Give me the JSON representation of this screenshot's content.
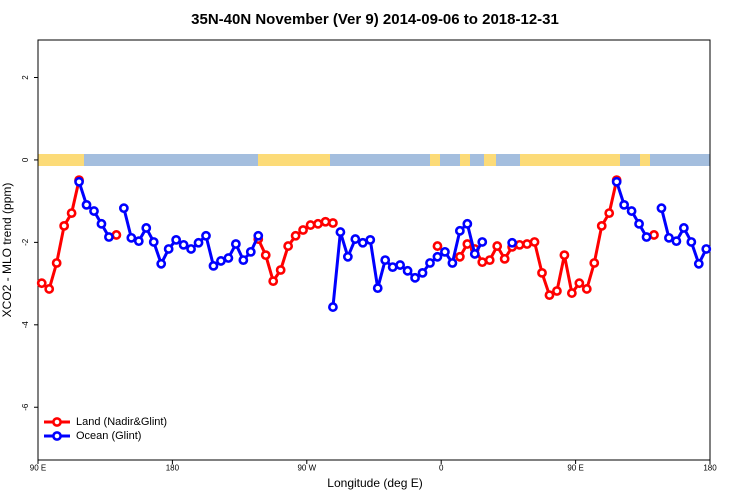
{
  "chart_data": {
    "type": "line",
    "title": "35N-40N November (Ver 9)   2014-09-06 to 2018-12-31",
    "xlabel": "Longitude (deg E)",
    "ylabel": "XCO2 - MLO trend (ppm)",
    "x": [
      92.5,
      97.5,
      102.5,
      107.5,
      112.5,
      117.5,
      122.5,
      127.5,
      132.5,
      137.5,
      142.5,
      147.5,
      152.5,
      157.5,
      162.5,
      167.5,
      172.5,
      177.5,
      182.5,
      187.5,
      192.5,
      197.5,
      202.5,
      207.5,
      212.5,
      217.5,
      222.5,
      227.5,
      232.5,
      237.5,
      242.5,
      247.5,
      252.5,
      257.5,
      262.5,
      267.5,
      272.5,
      277.5,
      282.5,
      287.5,
      292.5,
      297.5,
      302.5,
      307.5,
      312.5,
      317.5,
      322.5,
      327.5,
      332.5,
      337.5,
      342.5,
      347.5,
      352.5,
      357.5,
      362.5,
      367.5,
      372.5,
      377.5,
      382.5,
      387.5,
      392.5,
      397.5,
      402.5,
      407.5,
      412.5,
      417.5,
      422.5,
      427.5,
      432.5,
      437.5,
      442.5,
      447.5,
      452.5,
      457.5,
      462.5,
      467.5,
      472.5,
      477.5,
      482.5,
      487.5,
      492.5,
      497.5,
      502.5,
      507.5,
      512.5,
      517.5,
      522.5,
      527.5,
      532.5,
      537.5
    ],
    "series": [
      {
        "name": "Land (Nadir&Glint)",
        "color": "#ff0000",
        "values": [
          -2.99,
          -3.13,
          -2.5,
          -1.6,
          -1.29,
          -0.49,
          null,
          null,
          null,
          null,
          -1.82,
          null,
          null,
          null,
          null,
          null,
          null,
          null,
          null,
          null,
          null,
          null,
          null,
          null,
          null,
          null,
          null,
          null,
          null,
          -1.92,
          -2.31,
          -2.94,
          -2.67,
          -2.09,
          -1.84,
          -1.7,
          -1.58,
          -1.55,
          -1.5,
          -1.53,
          null,
          null,
          null,
          null,
          null,
          null,
          null,
          null,
          null,
          null,
          null,
          null,
          null,
          -2.09,
          null,
          null,
          -2.35,
          -2.04,
          -2.16,
          -2.48,
          -2.43,
          -2.09,
          -2.4,
          -2.11,
          -2.06,
          -2.04,
          -1.99,
          -2.74,
          -3.28,
          -3.18,
          -2.31,
          -3.23,
          -2.99,
          -3.13,
          -2.5,
          -1.6,
          -1.29,
          -0.49,
          null,
          null,
          null,
          null,
          -1.82,
          null,
          null,
          null,
          null,
          null,
          null,
          null
        ]
      },
      {
        "name": "Ocean (Glint)",
        "color": "#0000ff",
        "values": [
          null,
          null,
          null,
          null,
          null,
          -0.53,
          -1.09,
          -1.24,
          -1.55,
          -1.87,
          null,
          -1.17,
          -1.89,
          -1.97,
          -1.65,
          -1.99,
          -2.52,
          -2.16,
          -1.94,
          -2.06,
          -2.16,
          -2.01,
          -1.84,
          -2.57,
          -2.45,
          -2.38,
          -2.04,
          -2.43,
          -2.23,
          -1.84,
          null,
          null,
          null,
          null,
          null,
          null,
          null,
          null,
          null,
          -3.57,
          -1.75,
          -2.35,
          -1.92,
          -2.01,
          -1.94,
          -3.11,
          -2.43,
          -2.6,
          -2.55,
          -2.69,
          -2.86,
          -2.74,
          -2.5,
          -2.35,
          -2.23,
          -2.5,
          -1.72,
          -1.55,
          -2.28,
          -1.99,
          null,
          null,
          null,
          -2.01,
          null,
          null,
          null,
          null,
          null,
          null,
          null,
          null,
          null,
          null,
          null,
          null,
          null,
          -0.53,
          -1.09,
          -1.24,
          -1.55,
          -1.87,
          null,
          -1.17,
          -1.89,
          -1.97,
          -1.65,
          -1.99,
          -2.52,
          -2.16
        ]
      }
    ],
    "xlim": [
      90,
      540
    ],
    "xticks": [
      {
        "value": 90,
        "label": "90 E"
      },
      180,
      {
        "value": 270,
        "label": "90 W"
      },
      {
        "value": 360,
        "label": "0"
      },
      {
        "value": 450,
        "label": "90 E"
      },
      {
        "value": 540,
        "label": "180"
      }
    ],
    "ylim": [
      -7.28,
      2.91
    ],
    "yticks": [
      -6,
      -4,
      -2,
      0,
      2
    ],
    "legend": "lower left"
  }
}
